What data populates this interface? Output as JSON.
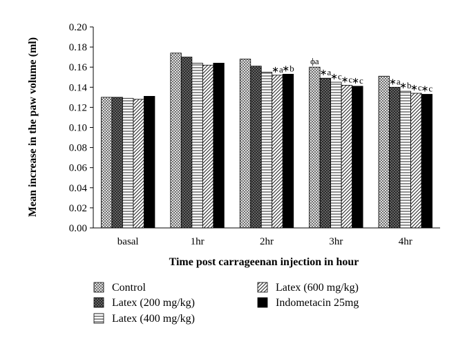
{
  "chart_data": {
    "type": "bar",
    "ylabel": "Mean increase in the paw volume (ml)",
    "xlabel": "Time post carrageenan injection in hour",
    "ylim": [
      0,
      0.2
    ],
    "yticks": [
      "0.00",
      "0.02",
      "0.04",
      "0.06",
      "0.08",
      "0.10",
      "0.12",
      "0.14",
      "0.16",
      "0.18",
      "0.20"
    ],
    "categories": [
      "basal",
      "1hr",
      "2hr",
      "3hr",
      "4hr"
    ],
    "series": [
      {
        "name": "Control",
        "pattern": "crosshatch",
        "values": [
          0.13,
          0.174,
          0.168,
          0.16,
          0.151
        ]
      },
      {
        "name": "Latex (200 mg/kg)",
        "pattern": "dark-dots",
        "values": [
          0.13,
          0.17,
          0.161,
          0.149,
          0.14
        ]
      },
      {
        "name": "Latex (400 mg/kg)",
        "pattern": "horizontal-lines",
        "values": [
          0.129,
          0.164,
          0.155,
          0.145,
          0.136
        ]
      },
      {
        "name": "Latex (600 mg/kg)",
        "pattern": "diagonal-lines",
        "values": [
          0.128,
          0.162,
          0.152,
          0.142,
          0.134
        ]
      },
      {
        "name": "Indometacin 25mg",
        "pattern": "solid-black",
        "values": [
          0.131,
          0.164,
          0.153,
          0.141,
          0.133
        ]
      }
    ],
    "annotations": [
      {
        "category": "2hr",
        "series": 3,
        "text": "∗a"
      },
      {
        "category": "2hr",
        "series": 4,
        "text": "∗b"
      },
      {
        "category": "3hr",
        "series": 0,
        "text": "ϕa"
      },
      {
        "category": "3hr",
        "series": 1,
        "text": "∗a"
      },
      {
        "category": "3hr",
        "series": 2,
        "text": "∗c"
      },
      {
        "category": "3hr",
        "series": 3,
        "text": "∗c"
      },
      {
        "category": "3hr",
        "series": 4,
        "text": "∗c"
      },
      {
        "category": "4hr",
        "series": 1,
        "text": "∗a"
      },
      {
        "category": "4hr",
        "series": 2,
        "text": "∗b"
      },
      {
        "category": "4hr",
        "series": 3,
        "text": "∗c"
      },
      {
        "category": "4hr",
        "series": 4,
        "text": "∗c"
      }
    ],
    "legend_position": "bottom",
    "grid": false
  }
}
